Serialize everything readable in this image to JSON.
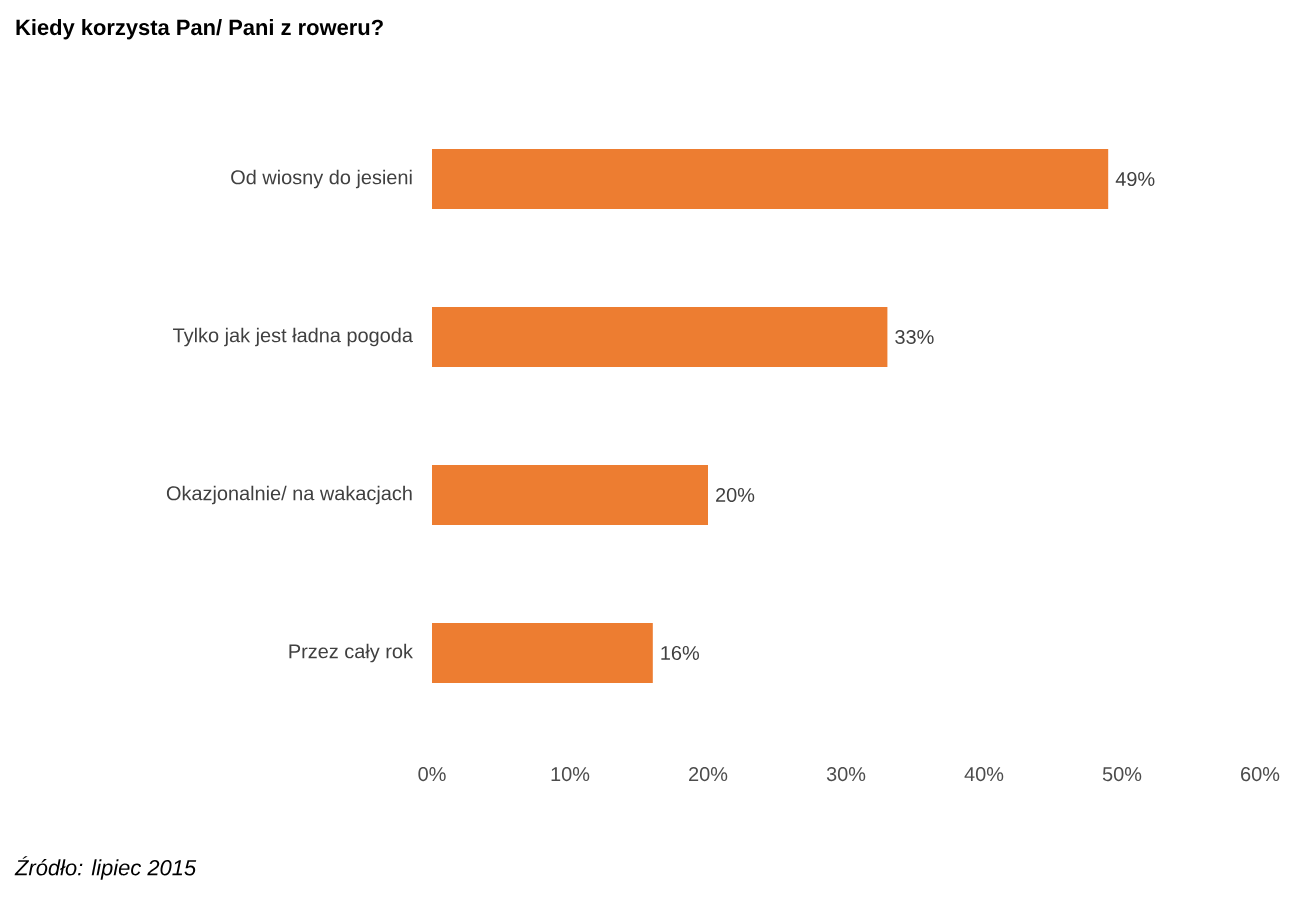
{
  "chart_data": {
    "type": "bar",
    "orientation": "horizontal",
    "title": "Kiedy korzysta  Pan/ Pani z roweru?",
    "categories": [
      "Od wiosny do jesieni",
      "Tylko jak jest ładna pogoda",
      "Okazjonalnie/ na wakacjach",
      "Przez cały rok"
    ],
    "values": [
      49,
      33,
      20,
      16
    ],
    "value_labels": [
      "49%",
      "33%",
      "20%",
      "16%"
    ],
    "color": "#ed7d31",
    "xlim": [
      0,
      60
    ],
    "xticks": [
      {
        "value": 0,
        "label": "0%"
      },
      {
        "value": 10,
        "label": "10%"
      },
      {
        "value": 20,
        "label": "20%"
      },
      {
        "value": 30,
        "label": "30%"
      },
      {
        "value": 40,
        "label": "40%"
      },
      {
        "value": 50,
        "label": "50%"
      },
      {
        "value": 60,
        "label": "60%"
      }
    ],
    "annotations": [
      "Źródło: lipiec 2015"
    ]
  }
}
